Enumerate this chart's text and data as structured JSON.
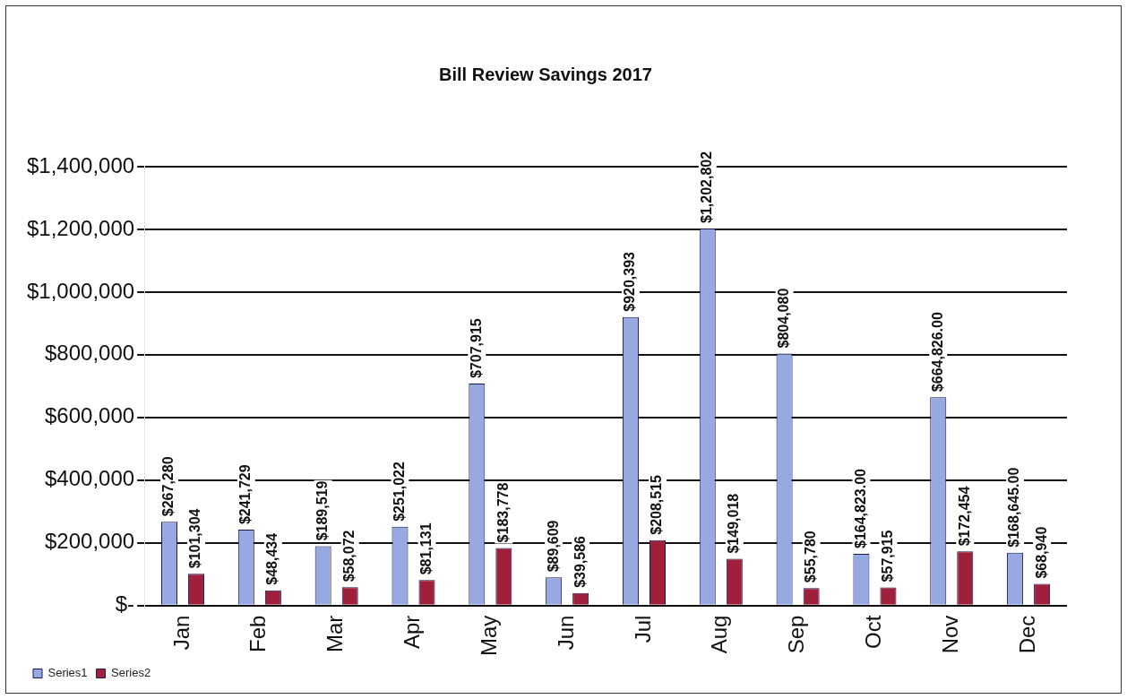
{
  "chart_data": {
    "type": "bar",
    "title": "Bill Review Savings 2017",
    "categories": [
      "Jan",
      "Feb",
      "Mar",
      "Apr",
      "May",
      "Jun",
      "Jul",
      "Aug",
      "Sep",
      "Oct",
      "Nov",
      "Dec"
    ],
    "series": [
      {
        "name": "Series1",
        "color": "#98a8e0",
        "values": [
          267280,
          241729,
          189519,
          251022,
          707915,
          89609,
          920393,
          1202802,
          804080,
          164823,
          664826,
          168645
        ],
        "value_labels": [
          "$267,280",
          "$241,729",
          "$189,519",
          "$251,022",
          "$707,915",
          "$89,609",
          "$920,393",
          "$1,202,802",
          "$804,080",
          "$164,823.00",
          "$664,826.00",
          "$168,645.00"
        ]
      },
      {
        "name": "Series2",
        "color": "#a0203c",
        "values": [
          101304,
          48434,
          58072,
          81131,
          183778,
          39586,
          208515,
          149018,
          55780,
          57915,
          172454,
          68940
        ],
        "value_labels": [
          "$101,304",
          "$48,434",
          "$58,072",
          "$81,131",
          "$183,778",
          "$39,586",
          "$208,515",
          "$149,018",
          "$55,780",
          "$57,915",
          "$172,454",
          "$68,940"
        ]
      }
    ],
    "ylim": [
      0,
      1400000
    ],
    "yticks": [
      {
        "value": 0,
        "label": "$-"
      },
      {
        "value": 200000,
        "label": "$200,000"
      },
      {
        "value": 400000,
        "label": "$400,000"
      },
      {
        "value": 600000,
        "label": "$600,000"
      },
      {
        "value": 800000,
        "label": "$800,000"
      },
      {
        "value": 1000000,
        "label": "$1,000,000"
      },
      {
        "value": 1200000,
        "label": "$1,200,000"
      },
      {
        "value": 1400000,
        "label": "$1,400,000"
      }
    ],
    "grid": "y",
    "legend": "bottom left"
  }
}
